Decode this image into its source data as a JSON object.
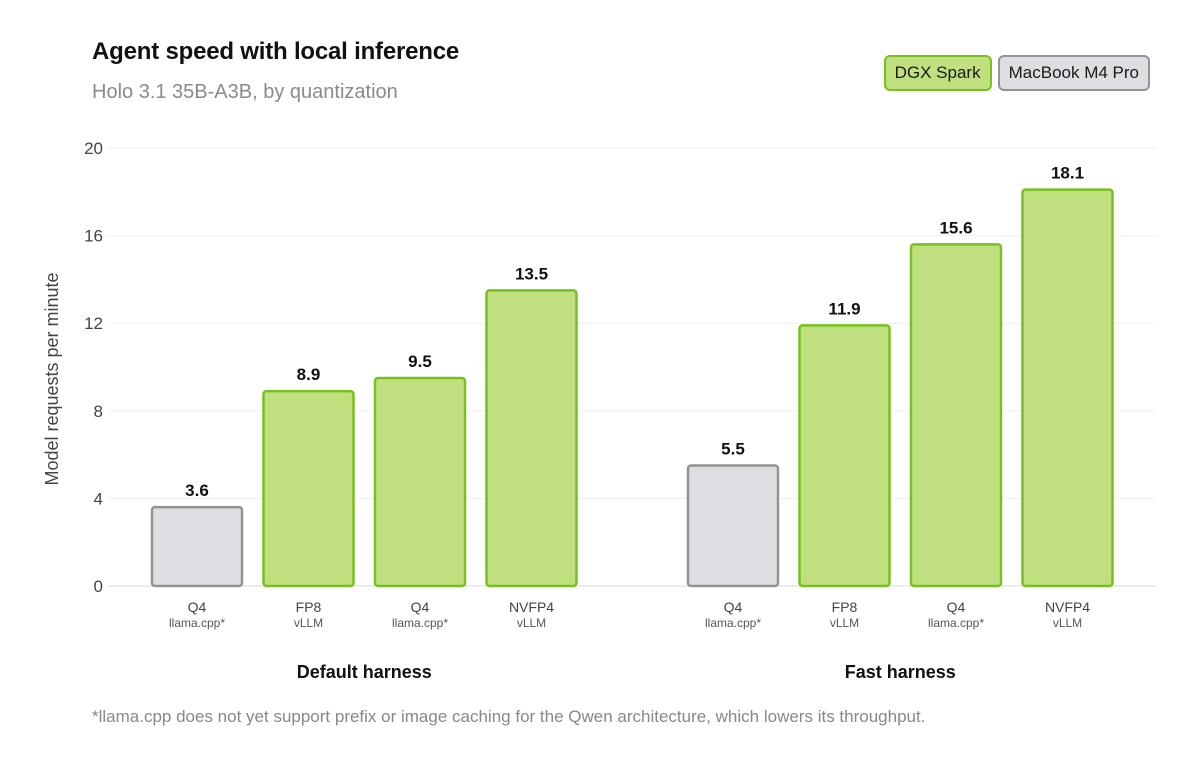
{
  "chart_data": {
    "type": "bar",
    "title": "Agent speed with local inference",
    "subtitle": "Holo 3.1 35B-A3B, by quantization",
    "ylabel": "Model requests per minute",
    "ylim": [
      0,
      20
    ],
    "yticks": [
      0,
      4,
      8,
      12,
      16,
      20
    ],
    "grid": true,
    "legend_position": "top-right",
    "legend": [
      {
        "name": "DGX Spark",
        "fill": "#c0e080",
        "stroke": "#78c020"
      },
      {
        "name": "MacBook M4 Pro",
        "fill": "#dcdee2",
        "stroke": "#939393"
      }
    ],
    "groups": [
      {
        "label": "Default harness",
        "bars": [
          {
            "quant": "Q4",
            "backend": "llama.cpp*",
            "value": 3.6,
            "device": "MacBook M4 Pro",
            "value_label": "3.6"
          },
          {
            "quant": "FP8",
            "backend": "vLLM",
            "value": 8.9,
            "device": "DGX Spark",
            "value_label": "8.9"
          },
          {
            "quant": "Q4",
            "backend": "llama.cpp*",
            "value": 9.5,
            "device": "DGX Spark",
            "value_label": "9.5"
          },
          {
            "quant": "NVFP4",
            "backend": "vLLM",
            "value": 13.5,
            "device": "DGX Spark",
            "value_label": "13.5"
          }
        ]
      },
      {
        "label": "Fast harness",
        "bars": [
          {
            "quant": "Q4",
            "backend": "llama.cpp*",
            "value": 5.5,
            "device": "MacBook M4 Pro",
            "value_label": "5.5"
          },
          {
            "quant": "FP8",
            "backend": "vLLM",
            "value": 11.9,
            "device": "DGX Spark",
            "value_label": "11.9"
          },
          {
            "quant": "Q4",
            "backend": "llama.cpp*",
            "value": 15.6,
            "device": "DGX Spark",
            "value_label": "15.6"
          },
          {
            "quant": "NVFP4",
            "backend": "vLLM",
            "value": 18.1,
            "device": "DGX Spark",
            "value_label": "18.1"
          }
        ]
      }
    ],
    "footnote": "*llama.cpp does not yet support prefix or image caching for the Qwen architecture, which lowers its throughput."
  }
}
